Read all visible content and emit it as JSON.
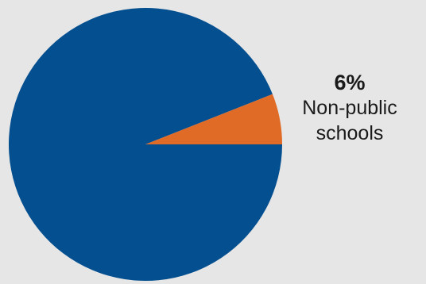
{
  "chart_data": {
    "type": "pie",
    "title": "",
    "slices": [
      {
        "name": "",
        "value": 94,
        "color": "#044f8f"
      },
      {
        "name": "Non-public schools",
        "value": 6,
        "color": "#e06b27",
        "label_pct": "6%",
        "label_lines": [
          "Non-public",
          "schools"
        ]
      }
    ],
    "start_angle_deg": 0,
    "direction": "counterclockwise"
  }
}
